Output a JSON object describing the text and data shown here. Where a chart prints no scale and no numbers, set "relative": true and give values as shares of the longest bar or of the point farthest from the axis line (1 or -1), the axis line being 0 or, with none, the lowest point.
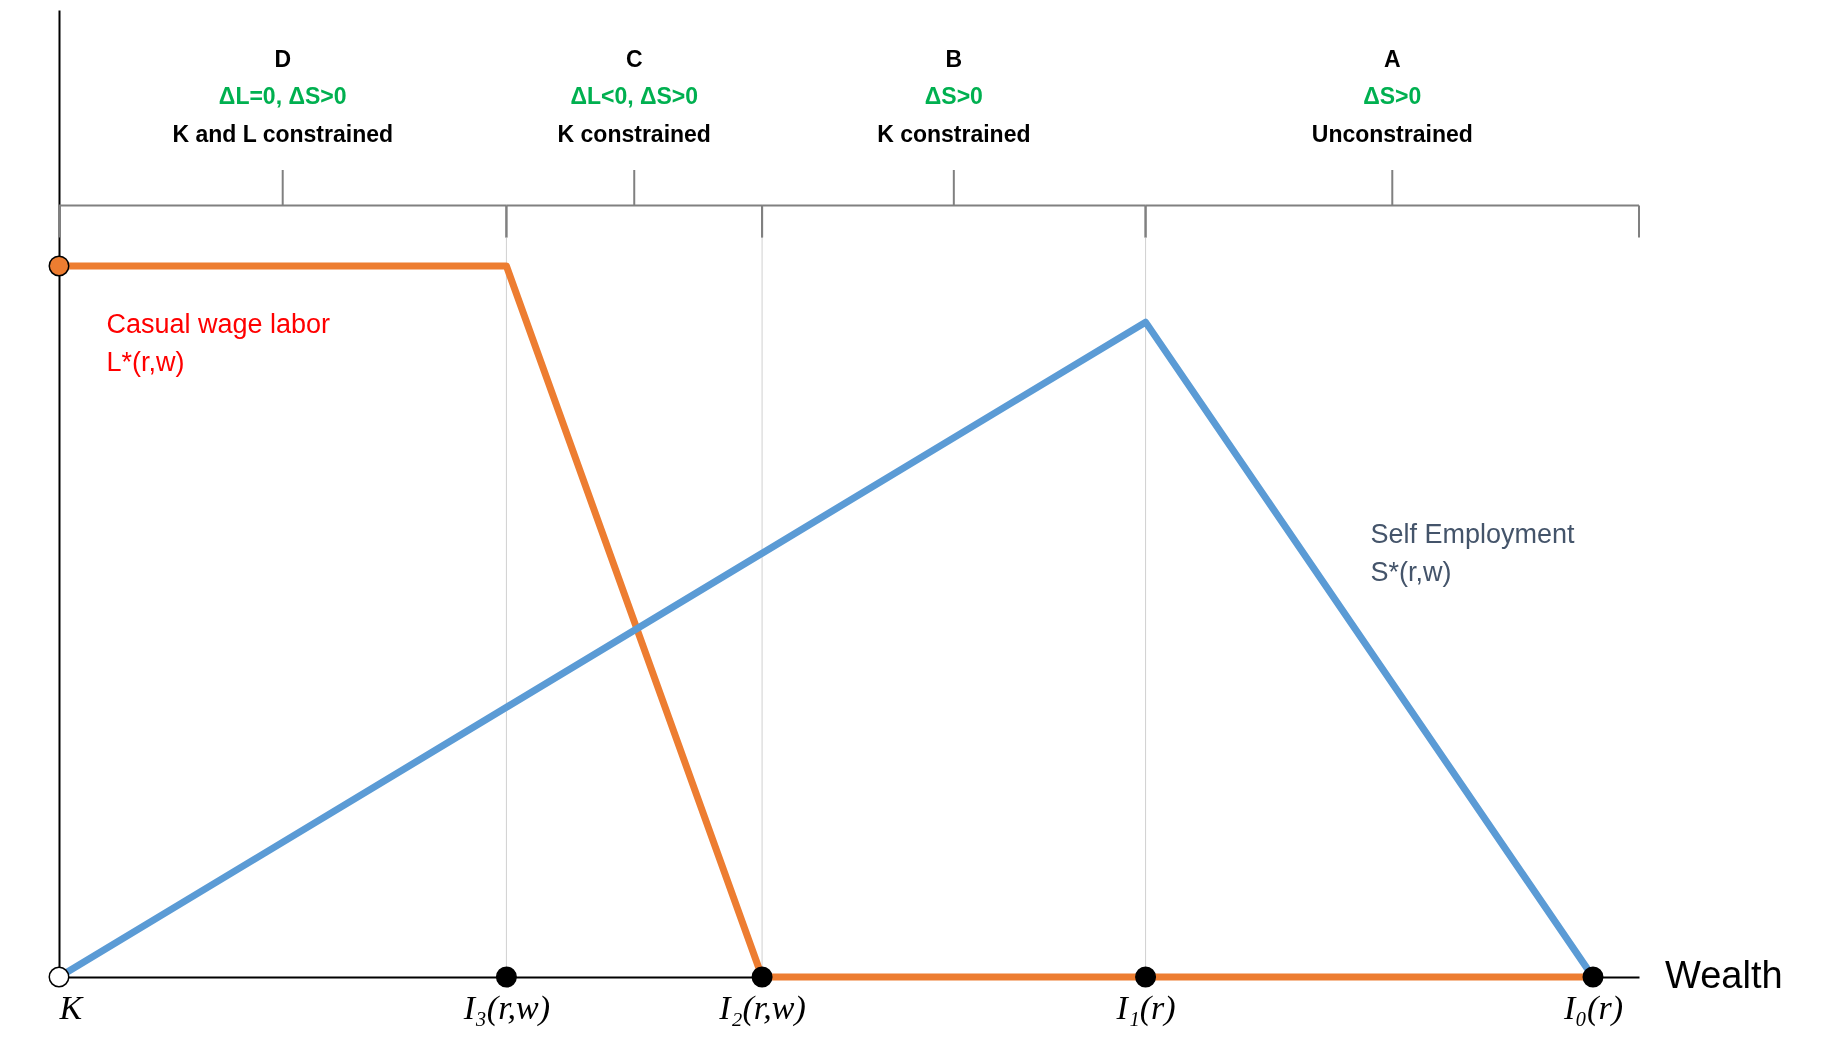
{
  "chart_data": {
    "type": "line",
    "relative": true,
    "xlabel": "Wealth",
    "categories": [
      "K",
      null,
      null,
      null,
      null,
      null,
      null,
      "I₃(r,w)",
      null,
      null,
      null,
      "I₂(r,w)",
      null,
      null,
      null,
      null,
      null,
      "I₁(r)",
      null,
      null,
      null,
      null,
      null,
      null,
      "I₀(r)"
    ],
    "series": [
      {
        "name": "Casual wage labor L*(r,w)",
        "color": "#ed7d31",
        "x": [
          "K",
          "I₃(r,w)",
          "I₂(r,w)",
          "I₀(r)"
        ],
        "values": [
          1,
          1,
          0,
          0
        ]
      },
      {
        "name": "Self Employment S*(r,w)",
        "color": "#5b9bd5",
        "x": [
          "K",
          "I₁(r)",
          "I₀(r)"
        ],
        "values": [
          0,
          0.921,
          0
        ]
      },
      {
        "type": "scatter",
        "x": [
          "K",
          "K",
          "I₃(r,w)",
          "I₂(r,w)",
          "I₁(r)",
          "I₀(r)"
        ],
        "values": [
          1,
          0,
          0,
          0,
          0,
          0
        ],
        "colors": [
          "#ed7d31",
          "#ffffff",
          "#000000",
          "#000000",
          "#000000",
          "#000000"
        ]
      }
    ],
    "annotations": [
      "D\nΔL=0, ΔS>0\nK and L constrained",
      "C\nΔL<0, ΔS>0\nK constrained",
      "B\nΔS>0\nK constrained",
      "A\nΔS>0\nUnconstrained"
    ],
    "ref_lines": [
      {
        "axis": "x",
        "value": "I₃(r,w)"
      },
      {
        "axis": "x",
        "value": "I₂(r,w)"
      },
      {
        "axis": "x",
        "value": "I₁(r)"
      }
    ],
    "grid": false,
    "legend": false
  }
}
